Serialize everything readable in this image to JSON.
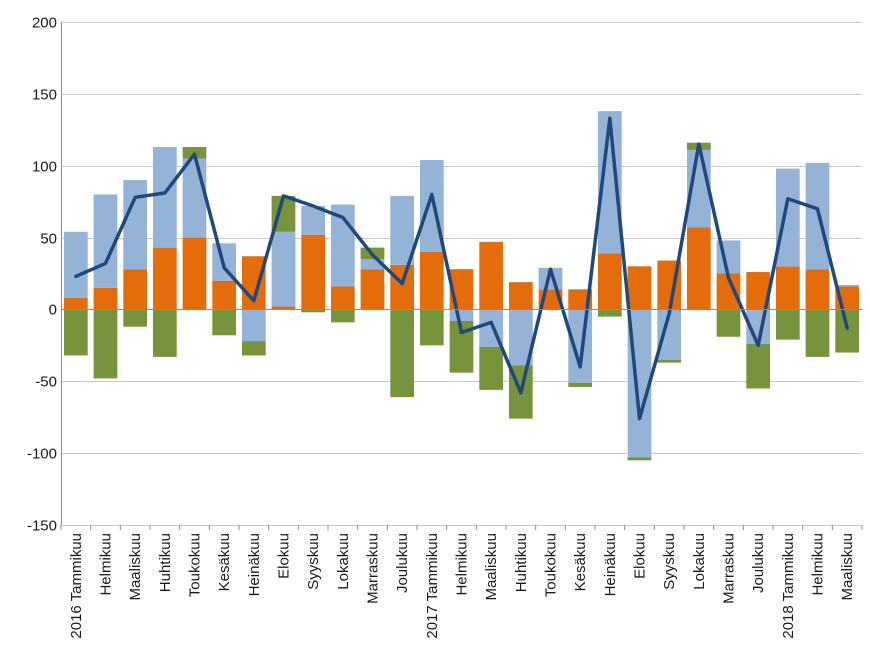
{
  "chart_data": {
    "type": "bar",
    "stacked": true,
    "title": "",
    "xlabel": "",
    "ylabel": "",
    "ylim": [
      -150,
      200
    ],
    "yticks": [
      -150,
      -100,
      -50,
      0,
      50,
      100,
      150,
      200
    ],
    "grid": true,
    "legend": "none",
    "categories": [
      "2016 Tammikuu",
      "Helmikuu",
      "Maaliskuu",
      "Huhtikuu",
      "Toukokuu",
      "Kesäkuu",
      "Heinäkuu",
      "Elokuu",
      "Syyskuu",
      "Lokakuu",
      "Marraskuu",
      "Joulukuu",
      "2017 Tammikuu",
      "Helmikuu",
      "Maaliskuu",
      "Huhtikuu",
      "Toukokuu",
      "Kesäkuu",
      "Heinäkuu",
      "Elokuu",
      "Syyskuu",
      "Lokakuu",
      "Marraskuu",
      "Joulukuu",
      "2018 Tammikuu",
      "Helmikuu",
      "Maaliskuu"
    ],
    "series": [
      {
        "type": "bar",
        "color": "#E46C0A",
        "values": [
          8,
          15,
          28,
          43,
          50,
          20,
          37,
          2,
          52,
          16,
          28,
          31,
          40,
          28,
          47,
          19,
          14,
          14,
          39,
          30,
          34,
          57,
          25,
          26,
          30,
          28,
          16
        ]
      },
      {
        "type": "bar",
        "color": "#95B3D7",
        "values": [
          46,
          65,
          62,
          70,
          55,
          26,
          -22,
          52,
          20,
          57,
          7,
          48,
          64,
          -8,
          -26,
          -39,
          15,
          -51,
          99,
          -103,
          -35,
          54,
          23,
          -24,
          68,
          74,
          1
        ]
      },
      {
        "type": "bar",
        "color": "#77933C",
        "values": [
          -32,
          -48,
          -12,
          -33,
          8,
          -18,
          -10,
          25,
          -2,
          -9,
          8,
          -61,
          -25,
          -36,
          -30,
          -37,
          0,
          -3,
          -5,
          -2,
          -2,
          5,
          -19,
          -31,
          -21,
          -33,
          -30
        ]
      },
      {
        "type": "line",
        "color": "#1F497D",
        "values": [
          23,
          32,
          78,
          81,
          108,
          29,
          6,
          79,
          72,
          64,
          38,
          18,
          80,
          -16,
          -9,
          -58,
          28,
          -40,
          133,
          -76,
          -3,
          115,
          22,
          -25,
          77,
          70,
          -13
        ]
      }
    ]
  }
}
